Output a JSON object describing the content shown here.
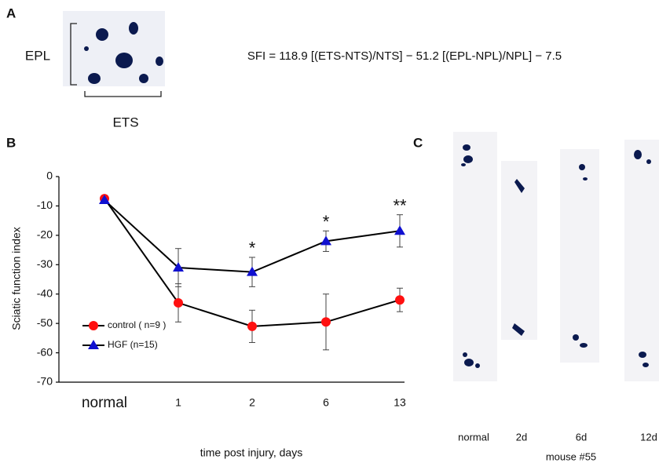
{
  "panel_a": {
    "label": "A",
    "epl": "EPL",
    "ets": "ETS",
    "formula": "SFI = 118.9 [(ETS-NTS)/NTS] − 51.2 [(EPL-NPL)/NPL] − 7.5"
  },
  "chart_data": {
    "type": "line",
    "label": "B",
    "x_label": "time post injury, days",
    "y_label": "Sciatic function index",
    "categories": [
      "normal",
      "1",
      "2",
      "6",
      "13"
    ],
    "series": [
      {
        "name": "control ( n=9 )",
        "color": "#ff1010",
        "marker": "circle",
        "values": [
          -7.5,
          -43,
          -51,
          -49.5,
          -42
        ],
        "errors": [
          null,
          6.5,
          5.5,
          9.5,
          4
        ]
      },
      {
        "name": "HGF (n=15)",
        "color": "#1010d0",
        "marker": "triangle",
        "values": [
          -8,
          -31,
          -32.5,
          -22,
          -18.5
        ],
        "errors": [
          null,
          6.5,
          5,
          3.5,
          5.5
        ]
      }
    ],
    "significance": [
      null,
      null,
      "*",
      "*",
      "**"
    ],
    "ylim": [
      -70,
      0
    ],
    "yticks": [
      0,
      -10,
      -20,
      -30,
      -40,
      -50,
      -60,
      -70
    ],
    "legend": "lower left"
  },
  "panel_c": {
    "label": "C",
    "strips": [
      "normal",
      "2d",
      "6d",
      "12d"
    ],
    "caption": "mouse #55"
  }
}
